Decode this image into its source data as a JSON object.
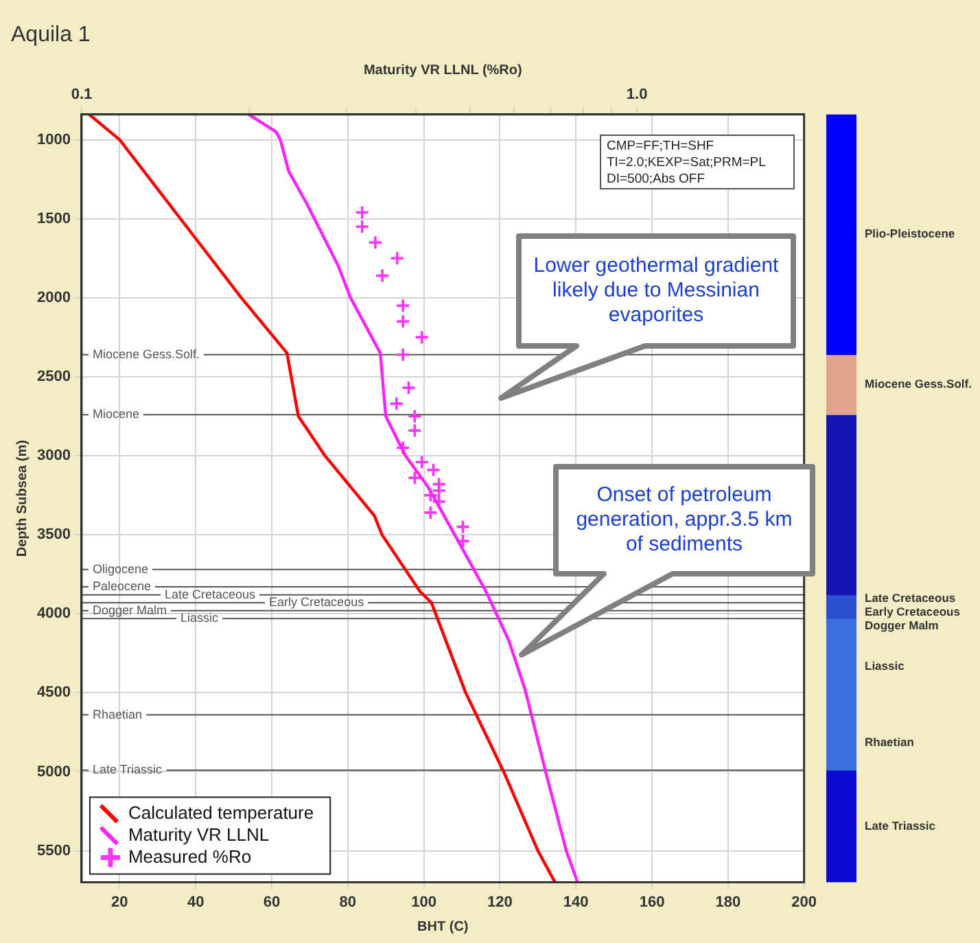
{
  "chart_data": [
    {
      "type": "line",
      "title": "Aquila 1",
      "xlabel": "BHT (C)",
      "x2label": "Maturity VR LLNL (%Ro)",
      "ylabel": "Depth Subsea (m)",
      "xlim": [
        10,
        200
      ],
      "xticks": [
        20,
        40,
        60,
        80,
        100,
        120,
        140,
        160,
        180,
        200
      ],
      "x2lim": [
        0.1,
        2
      ],
      "x2ticks": [
        0.1,
        {
          "value": 0.2,
          "label": null
        },
        {
          "value": 0.3,
          "label": null
        },
        {
          "value": 0.4,
          "label": null
        },
        {
          "value": 0.5,
          "label": null
        },
        {
          "value": 0.6,
          "label": null
        },
        {
          "value": 0.7,
          "label": null
        },
        {
          "value": 0.8,
          "label": null
        },
        {
          "value": 0.9,
          "label": null
        },
        {
          "value": 1,
          "label": "1.0"
        }
      ],
      "ylim": [
        5700,
        840
      ],
      "yticks": [
        1000,
        1500,
        2000,
        2500,
        3000,
        3500,
        4000,
        4500,
        5000,
        5500
      ],
      "log": "x2",
      "grid": true,
      "legend": "bottom left",
      "series": [
        {
          "name": "Calculated temperature",
          "color": "#ff0000",
          "x": [
            12,
            20,
            36,
            52,
            64,
            67,
            74,
            87,
            89,
            99,
            102,
            111,
            121,
            130,
            134.5
          ],
          "values": [
            840,
            1000,
            1500,
            2000,
            2350,
            2750,
            3000,
            3380,
            3500,
            3860,
            3930,
            4500,
            5000,
            5500,
            5700
          ]
        },
        {
          "name": "Maturity VR LLNL",
          "axis": "x2",
          "color": "#ff22ff",
          "x": [
            0.2,
            0.224,
            0.228,
            0.236,
            0.254,
            0.29,
            0.305,
            0.345,
            0.353,
            0.383,
            0.421,
            0.468,
            0.535,
            0.588,
            0.629,
            0.685,
            0.746,
            0.782
          ],
          "values": [
            840,
            950,
            1000,
            1200,
            1400,
            1800,
            2000,
            2350,
            2750,
            3000,
            3200,
            3490,
            3860,
            4170,
            4480,
            5000,
            5500,
            5700
          ]
        },
        {
          "name": "Measured %Ro",
          "type": "scatter",
          "marker": "cross",
          "axis": "x2",
          "color": "#ff33ff",
          "x": [
            0.32,
            0.32,
            0.338,
            0.37,
            0.348,
            0.379,
            0.379,
            0.41,
            0.379,
            0.388,
            0.369,
            0.398,
            0.398,
            0.379,
            0.41,
            0.43,
            0.398,
            0.44,
            0.44,
            0.425,
            0.44,
            0.425,
            0.486,
            0.486
          ],
          "values": [
            1460,
            1550,
            1650,
            1750,
            1860,
            2050,
            2150,
            2250,
            2360,
            2570,
            2670,
            2750,
            2840,
            2950,
            3040,
            3090,
            3140,
            3180,
            3220,
            3250,
            3290,
            3360,
            3450,
            3540
          ]
        }
      ],
      "ref_lines": [
        {
          "axis": "y",
          "value": 2360,
          "label": "Miocene Gess.Solf.",
          "color": "#555555"
        },
        {
          "axis": "y",
          "value": 2740,
          "label": "Miocene",
          "color": "#555555"
        },
        {
          "axis": "y",
          "value": 3720,
          "label": "Oligocene",
          "color": "#555555"
        },
        {
          "axis": "y",
          "value": 3830,
          "label": "Paleocene",
          "color": "#555555"
        },
        {
          "axis": "y",
          "value": 3880,
          "label": "Late Cretaceous",
          "color": "#555555"
        },
        {
          "axis": "y",
          "value": 3930,
          "label": "Early Cretaceous",
          "color": "#555555"
        },
        {
          "axis": "y",
          "value": 3980,
          "label": "Dogger Malm",
          "color": "#555555"
        },
        {
          "axis": "y",
          "value": 4030,
          "label": "Liassic",
          "color": "#555555"
        },
        {
          "axis": "y",
          "value": 4640,
          "label": "Rhaetian",
          "color": "#555555"
        },
        {
          "axis": "y",
          "value": 4990,
          "label": "Late Triassic",
          "color": "#555555"
        }
      ],
      "annotations": [
        "CMP=FF;TH=SHF\nTI=2.0;KEXP=Sat;PRM=PL\nDI=500;Abs OFF",
        "Lower geothermal gradient likely due to Messinian evaporites",
        "Onset of petroleum generation, appr.3.5 km of sediments"
      ]
    },
    {
      "type": "bar",
      "categories": [
        null
      ],
      "ylim": [
        5700,
        840
      ],
      "tick_labels": false,
      "series": [
        {
          "name": "Plio-Pleistocene",
          "color": "#0000ff",
          "base": [
            840
          ],
          "values": [
            1520
          ]
        },
        {
          "name": "Miocene Gess.Solf.",
          "color": "#e0a48c",
          "base": [
            2360
          ],
          "values": [
            380
          ]
        },
        {
          "color": "#1414b4",
          "base": [
            2740
          ],
          "values": [
            1140
          ]
        },
        {
          "name": "Late Cretaceous",
          "color": "#2a50d0",
          "base": [
            3880
          ],
          "values": [
            50
          ]
        },
        {
          "name": "Early Cretaceous",
          "color": "#2a50d0",
          "base": [
            3930
          ],
          "values": [
            50
          ]
        },
        {
          "name": "Dogger Malm",
          "color": "#2a50d0",
          "base": [
            3980
          ],
          "values": [
            50
          ]
        },
        {
          "name": "Liassic",
          "color": "#3a6fe0",
          "base": [
            4030
          ],
          "values": [
            610
          ]
        },
        {
          "name": "Rhaetian",
          "color": "#3a6fe0",
          "base": [
            4640
          ],
          "values": [
            350
          ]
        },
        {
          "name": "Late Triassic",
          "color": "#0a0ad2",
          "base": [
            4990
          ],
          "values": [
            710
          ]
        }
      ]
    }
  ]
}
